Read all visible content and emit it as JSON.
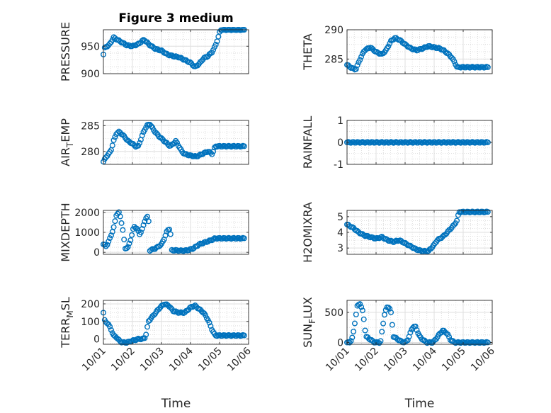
{
  "figure": {
    "title": "Figure 3 medium",
    "xlabel": "Time",
    "marker_color": "#0072BD",
    "x_ticks": [
      "10/01",
      "10/02",
      "10/03",
      "10/04",
      "10/05",
      "10/06"
    ],
    "x_range_days": [
      0,
      5
    ]
  },
  "chart_data": [
    {
      "type": "scatter",
      "ylabel": "PRESSURE",
      "ylabel_sub": "",
      "ylabel_tail": "",
      "ylim": [
        900,
        980
      ],
      "yticks": [
        900,
        950
      ],
      "ytick_labels": [
        "900",
        "950"
      ],
      "x": [
        0.0,
        4.85
      ],
      "n": 110,
      "profile": [
        [
          0,
          935
        ],
        [
          0.05,
          948
        ],
        [
          0.2,
          952
        ],
        [
          0.35,
          966
        ],
        [
          0.6,
          958
        ],
        [
          0.8,
          952
        ],
        [
          1.0,
          950
        ],
        [
          1.2,
          954
        ],
        [
          1.4,
          962
        ],
        [
          1.6,
          952
        ],
        [
          1.8,
          945
        ],
        [
          2.0,
          942
        ],
        [
          2.2,
          935
        ],
        [
          2.4,
          932
        ],
        [
          2.6,
          930
        ],
        [
          2.8,
          925
        ],
        [
          3.0,
          920
        ],
        [
          3.15,
          912
        ],
        [
          3.3,
          918
        ],
        [
          3.45,
          928
        ],
        [
          3.6,
          932
        ],
        [
          3.75,
          940
        ],
        [
          3.85,
          950
        ],
        [
          3.95,
          965
        ],
        [
          4.0,
          975
        ],
        [
          4.05,
          980
        ]
      ]
    },
    {
      "type": "scatter",
      "ylabel": "THETA",
      "ylabel_sub": "",
      "ylabel_tail": "",
      "ylim": [
        282.5,
        290
      ],
      "yticks": [
        285,
        290
      ],
      "ytick_labels": [
        "285",
        "290"
      ],
      "x": [
        0.0,
        4.85
      ],
      "n": 110,
      "profile": [
        [
          0,
          284
        ],
        [
          0.15,
          283.5
        ],
        [
          0.3,
          283.2
        ],
        [
          0.45,
          285
        ],
        [
          0.6,
          286.5
        ],
        [
          0.8,
          287
        ],
        [
          1.0,
          286.2
        ],
        [
          1.2,
          285.8
        ],
        [
          1.35,
          286.5
        ],
        [
          1.5,
          288
        ],
        [
          1.65,
          288.6
        ],
        [
          1.8,
          288.3
        ],
        [
          2.0,
          287.5
        ],
        [
          2.2,
          286.8
        ],
        [
          2.4,
          286.5
        ],
        [
          2.6,
          286.8
        ],
        [
          2.8,
          287.2
        ],
        [
          3.0,
          287
        ],
        [
          3.2,
          286.8
        ],
        [
          3.35,
          286.4
        ],
        [
          3.5,
          285.8
        ],
        [
          3.6,
          285.3
        ],
        [
          3.7,
          284.5
        ],
        [
          3.8,
          283.5
        ],
        [
          3.85,
          283.6
        ]
      ]
    },
    {
      "type": "scatter",
      "ylabel": "AIR",
      "ylabel_sub": "T",
      "ylabel_tail": "EMP",
      "ylim": [
        277.5,
        286
      ],
      "yticks": [
        280,
        285
      ],
      "ytick_labels": [
        "280",
        "285"
      ],
      "x": [
        0.0,
        4.85
      ],
      "n": 110,
      "profile": [
        [
          0,
          278
        ],
        [
          0.1,
          279
        ],
        [
          0.25,
          280
        ],
        [
          0.35,
          282
        ],
        [
          0.45,
          283.5
        ],
        [
          0.55,
          283.8
        ],
        [
          0.7,
          283
        ],
        [
          0.85,
          282
        ],
        [
          1.0,
          281.5
        ],
        [
          1.1,
          281
        ],
        [
          1.2,
          281
        ],
        [
          1.3,
          282.5
        ],
        [
          1.4,
          284
        ],
        [
          1.5,
          285
        ],
        [
          1.6,
          285.3
        ],
        [
          1.75,
          284
        ],
        [
          1.9,
          283
        ],
        [
          2.1,
          282
        ],
        [
          2.3,
          281
        ],
        [
          2.5,
          282
        ],
        [
          2.6,
          281
        ],
        [
          2.7,
          280
        ],
        [
          2.8,
          279.5
        ],
        [
          3.0,
          279.2
        ],
        [
          3.2,
          279
        ],
        [
          3.4,
          279.5
        ],
        [
          3.6,
          280
        ],
        [
          3.75,
          279.5
        ],
        [
          3.85,
          281
        ]
      ]
    },
    {
      "type": "scatter",
      "ylabel": "RAINFALL",
      "ylabel_sub": "",
      "ylabel_tail": "",
      "ylim": [
        -1,
        1
      ],
      "yticks": [
        -1,
        0,
        1
      ],
      "ytick_labels": [
        "-1",
        "0",
        "1"
      ],
      "x": [
        0.0,
        4.85
      ],
      "n": 110,
      "profile": [
        [
          0,
          0
        ],
        [
          4.85,
          0
        ]
      ]
    },
    {
      "type": "scatter",
      "ylabel": "MIXDEPTH",
      "ylabel_sub": "",
      "ylabel_tail": "",
      "ylim": [
        -100,
        2100
      ],
      "yticks": [
        0,
        1000,
        2000
      ],
      "ytick_labels": [
        "0",
        "1000",
        "2000"
      ],
      "x": [
        0.0,
        4.85
      ],
      "n": 110,
      "profile": [
        [
          0,
          400
        ],
        [
          0.1,
          300
        ],
        [
          0.2,
          600
        ],
        [
          0.35,
          1200
        ],
        [
          0.45,
          1900
        ],
        [
          0.55,
          2000
        ],
        [
          0.65,
          1300
        ],
        [
          0.75,
          200
        ],
        [
          0.85,
          250
        ],
        [
          0.95,
          700
        ],
        [
          1.05,
          1300
        ],
        [
          1.15,
          1200
        ],
        [
          1.25,
          900
        ],
        [
          1.35,
          1200
        ],
        [
          1.45,
          1700
        ],
        [
          1.55,
          1800
        ],
        [
          1.6,
          100
        ],
        [
          1.7,
          150
        ],
        [
          1.8,
          200
        ],
        [
          1.9,
          300
        ],
        [
          2.0,
          400
        ],
        [
          2.1,
          700
        ],
        [
          2.2,
          1100
        ],
        [
          2.3,
          1200
        ],
        [
          2.35,
          100
        ],
        [
          2.5,
          100
        ],
        [
          2.7,
          80
        ],
        [
          2.9,
          100
        ],
        [
          3.1,
          200
        ],
        [
          3.3,
          400
        ],
        [
          3.5,
          500
        ],
        [
          3.7,
          600
        ],
        [
          3.85,
          700
        ]
      ]
    },
    {
      "type": "scatter",
      "ylabel": "H2OMIXRA",
      "ylabel_sub": "",
      "ylabel_tail": "",
      "ylim": [
        2.6,
        5.4
      ],
      "yticks": [
        3,
        4,
        5
      ],
      "ytick_labels": [
        "3",
        "4",
        "5"
      ],
      "x": [
        0.0,
        4.85
      ],
      "n": 110,
      "profile": [
        [
          0,
          4.5
        ],
        [
          0.2,
          4.3
        ],
        [
          0.4,
          4.0
        ],
        [
          0.6,
          3.8
        ],
        [
          0.8,
          3.7
        ],
        [
          1.0,
          3.6
        ],
        [
          1.2,
          3.7
        ],
        [
          1.4,
          3.5
        ],
        [
          1.6,
          3.4
        ],
        [
          1.8,
          3.5
        ],
        [
          2.0,
          3.3
        ],
        [
          2.2,
          3.1
        ],
        [
          2.4,
          2.9
        ],
        [
          2.6,
          2.8
        ],
        [
          2.8,
          2.8
        ],
        [
          3.0,
          3.2
        ],
        [
          3.1,
          3.5
        ],
        [
          3.2,
          3.6
        ],
        [
          3.35,
          3.8
        ],
        [
          3.5,
          4.1
        ],
        [
          3.6,
          4.3
        ],
        [
          3.7,
          4.5
        ],
        [
          3.8,
          4.8
        ],
        [
          3.85,
          5.3
        ]
      ]
    },
    {
      "type": "scatter",
      "ylabel": "TERR",
      "ylabel_sub": "M",
      "ylabel_tail": "SL",
      "ylim": [
        -30,
        220
      ],
      "yticks": [
        0,
        100,
        200
      ],
      "ytick_labels": [
        "0",
        "100",
        "200"
      ],
      "x": [
        0.0,
        4.85
      ],
      "n": 110,
      "profile": [
        [
          0,
          150
        ],
        [
          0.05,
          100
        ],
        [
          0.15,
          90
        ],
        [
          0.25,
          60
        ],
        [
          0.35,
          20
        ],
        [
          0.45,
          10
        ],
        [
          0.55,
          -10
        ],
        [
          0.65,
          -20
        ],
        [
          0.8,
          -20
        ],
        [
          1.0,
          -10
        ],
        [
          1.2,
          0
        ],
        [
          1.35,
          0
        ],
        [
          1.45,
          10
        ],
        [
          1.55,
          100
        ],
        [
          1.65,
          120
        ],
        [
          1.8,
          150
        ],
        [
          1.95,
          180
        ],
        [
          2.1,
          200
        ],
        [
          2.25,
          190
        ],
        [
          2.4,
          160
        ],
        [
          2.6,
          150
        ],
        [
          2.8,
          150
        ],
        [
          3.0,
          180
        ],
        [
          3.15,
          190
        ],
        [
          3.3,
          170
        ],
        [
          3.45,
          150
        ],
        [
          3.6,
          110
        ],
        [
          3.75,
          50
        ],
        [
          3.85,
          20
        ]
      ]
    },
    {
      "type": "scatter",
      "ylabel": "SUN",
      "ylabel_sub": "F",
      "ylabel_tail": "LUX",
      "ylim": [
        -30,
        700
      ],
      "yticks": [
        0,
        500
      ],
      "ytick_labels": [
        "0",
        "500"
      ],
      "x": [
        0.0,
        4.85
      ],
      "n": 110,
      "profile": [
        [
          0,
          0
        ],
        [
          0.1,
          0
        ],
        [
          0.2,
          100
        ],
        [
          0.35,
          600
        ],
        [
          0.45,
          650
        ],
        [
          0.55,
          500
        ],
        [
          0.65,
          100
        ],
        [
          0.8,
          50
        ],
        [
          0.95,
          0
        ],
        [
          1.05,
          0
        ],
        [
          1.15,
          0
        ],
        [
          1.3,
          500
        ],
        [
          1.4,
          600
        ],
        [
          1.5,
          550
        ],
        [
          1.6,
          100
        ],
        [
          1.75,
          50
        ],
        [
          1.9,
          10
        ],
        [
          2.0,
          0
        ],
        [
          2.1,
          50
        ],
        [
          2.25,
          250
        ],
        [
          2.35,
          270
        ],
        [
          2.5,
          100
        ],
        [
          2.6,
          50
        ],
        [
          2.75,
          0
        ],
        [
          2.95,
          0
        ],
        [
          3.05,
          50
        ],
        [
          3.2,
          150
        ],
        [
          3.3,
          200
        ],
        [
          3.45,
          150
        ],
        [
          3.55,
          50
        ],
        [
          3.7,
          0
        ],
        [
          3.85,
          0
        ]
      ]
    }
  ]
}
